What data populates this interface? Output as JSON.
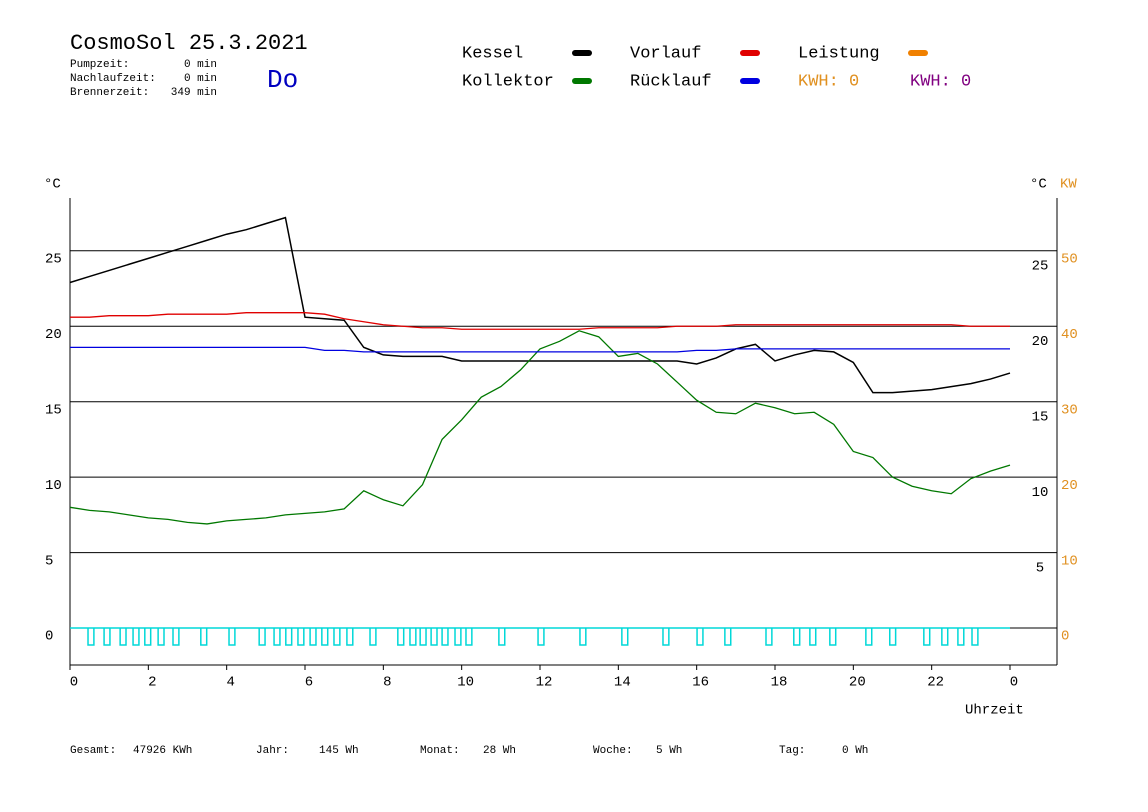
{
  "header": {
    "title": "CosmoSol 25.3.2021",
    "stats": [
      [
        "Pumpzeit:",
        "0 min"
      ],
      [
        "Nachlaufzeit:",
        "0 min"
      ],
      [
        "Brennerzeit:",
        "349 min"
      ]
    ],
    "day": "Do",
    "kwh_orange": "KWH: 0",
    "kwh_purple": "KWH: 0"
  },
  "footer": [
    [
      "Gesamt:",
      "47926 KWh"
    ],
    [
      "Jahr:",
      "145 Wh"
    ],
    [
      "Monat:",
      "28 Wh"
    ],
    [
      "Woche:",
      "5 Wh"
    ],
    [
      "Tag:",
      "0 Wh"
    ]
  ],
  "chart_data": {
    "type": "line",
    "y_label": "°C",
    "y2_label": "°C",
    "y3_label": "KW",
    "x_label": "Uhrzeit",
    "xlim": [
      0,
      24
    ],
    "xticks": [
      0,
      2,
      4,
      6,
      8,
      10,
      12,
      14,
      16,
      18,
      20,
      22,
      {
        "value": 24,
        "label": "0"
      }
    ],
    "ylim": [
      -2.45,
      28.5
    ],
    "yticks": [
      0,
      5,
      10,
      15,
      20,
      25
    ],
    "y2ticks": [
      5,
      10,
      15,
      20,
      25
    ],
    "y3lim": [
      -4.9,
      57
    ],
    "y3ticks": [
      0,
      10,
      20,
      30,
      40,
      50
    ],
    "grid": true,
    "x": [
      0,
      0.5,
      1,
      1.5,
      2,
      2.5,
      3,
      3.5,
      4,
      4.5,
      5,
      5.5,
      6,
      6.5,
      7,
      7.5,
      8,
      8.5,
      9,
      9.5,
      10,
      10.5,
      11,
      11.5,
      12,
      12.5,
      13,
      13.5,
      14,
      14.5,
      15,
      15.5,
      16,
      16.5,
      17,
      17.5,
      18,
      18.5,
      19,
      19.5,
      20,
      20.5,
      21,
      21.5,
      22,
      22.5,
      23,
      23.5,
      24
    ],
    "series": [
      {
        "name": "Kessel",
        "color": "#000000",
        "values": [
          22.9,
          23.3,
          23.7,
          24.1,
          24.5,
          24.9,
          25.3,
          25.7,
          26.1,
          26.4,
          26.8,
          27.2,
          20.6,
          20.5,
          20.4,
          18.6,
          18.1,
          18.0,
          18.0,
          18.0,
          17.7,
          17.7,
          17.7,
          17.7,
          17.7,
          17.7,
          17.7,
          17.7,
          17.7,
          17.7,
          17.7,
          17.7,
          17.5,
          17.9,
          18.5,
          18.8,
          17.7,
          18.1,
          18.4,
          18.3,
          17.6,
          15.6,
          15.6,
          15.7,
          15.8,
          16.0,
          16.2,
          16.5,
          16.9
        ]
      },
      {
        "name": "Vorlauf",
        "color": "#e00000",
        "values": [
          20.6,
          20.6,
          20.7,
          20.7,
          20.7,
          20.8,
          20.8,
          20.8,
          20.8,
          20.9,
          20.9,
          20.9,
          20.9,
          20.8,
          20.5,
          20.3,
          20.1,
          20.0,
          19.9,
          19.9,
          19.8,
          19.8,
          19.8,
          19.8,
          19.8,
          19.8,
          19.8,
          19.9,
          19.9,
          19.9,
          19.9,
          20.0,
          20.0,
          20.0,
          20.1,
          20.1,
          20.1,
          20.1,
          20.1,
          20.1,
          20.1,
          20.1,
          20.1,
          20.1,
          20.1,
          20.1,
          20.0,
          20.0,
          20.0
        ]
      },
      {
        "name": "Kollektor",
        "color": "#007800",
        "values": [
          8.0,
          7.8,
          7.7,
          7.5,
          7.3,
          7.2,
          7.0,
          6.9,
          7.1,
          7.2,
          7.3,
          7.5,
          7.6,
          7.7,
          7.9,
          9.1,
          8.5,
          8.1,
          9.5,
          12.5,
          13.8,
          15.3,
          16.0,
          17.1,
          18.5,
          19.0,
          19.7,
          19.3,
          18.0,
          18.2,
          17.5,
          16.3,
          15.1,
          14.3,
          14.2,
          14.9,
          14.6,
          14.2,
          14.3,
          13.5,
          11.7,
          11.3,
          10.0,
          9.4,
          9.1,
          8.9,
          9.9,
          10.4,
          10.8
        ]
      },
      {
        "name": "Rücklauf",
        "color": "#0000e0",
        "values": [
          18.6,
          18.6,
          18.6,
          18.6,
          18.6,
          18.6,
          18.6,
          18.6,
          18.6,
          18.6,
          18.6,
          18.6,
          18.6,
          18.4,
          18.4,
          18.3,
          18.3,
          18.3,
          18.3,
          18.3,
          18.3,
          18.3,
          18.3,
          18.3,
          18.3,
          18.3,
          18.3,
          18.3,
          18.3,
          18.3,
          18.3,
          18.3,
          18.4,
          18.4,
          18.5,
          18.5,
          18.5,
          18.5,
          18.5,
          18.5,
          18.5,
          18.5,
          18.5,
          18.5,
          18.5,
          18.5,
          18.5,
          18.5,
          18.5
        ]
      },
      {
        "name": "Leistung",
        "color": "#f08000"
      }
    ],
    "pump_color": "#00d8d8",
    "pump_on": [
      0.46,
      0.87,
      1.28,
      1.61,
      1.91,
      2.25,
      2.63,
      3.34,
      4.06,
      4.83,
      5.21,
      5.51,
      5.82,
      6.13,
      6.43,
      6.74,
      7.07,
      7.66,
      8.37,
      8.68,
      8.94,
      9.22,
      9.5,
      9.83,
      10.11,
      10.95,
      11.95,
      13.02,
      14.09,
      15.14,
      16.01,
      16.72,
      17.77,
      18.48,
      18.89,
      19.4,
      20.32,
      20.93,
      21.8,
      22.26,
      22.67,
      23.03
    ]
  }
}
